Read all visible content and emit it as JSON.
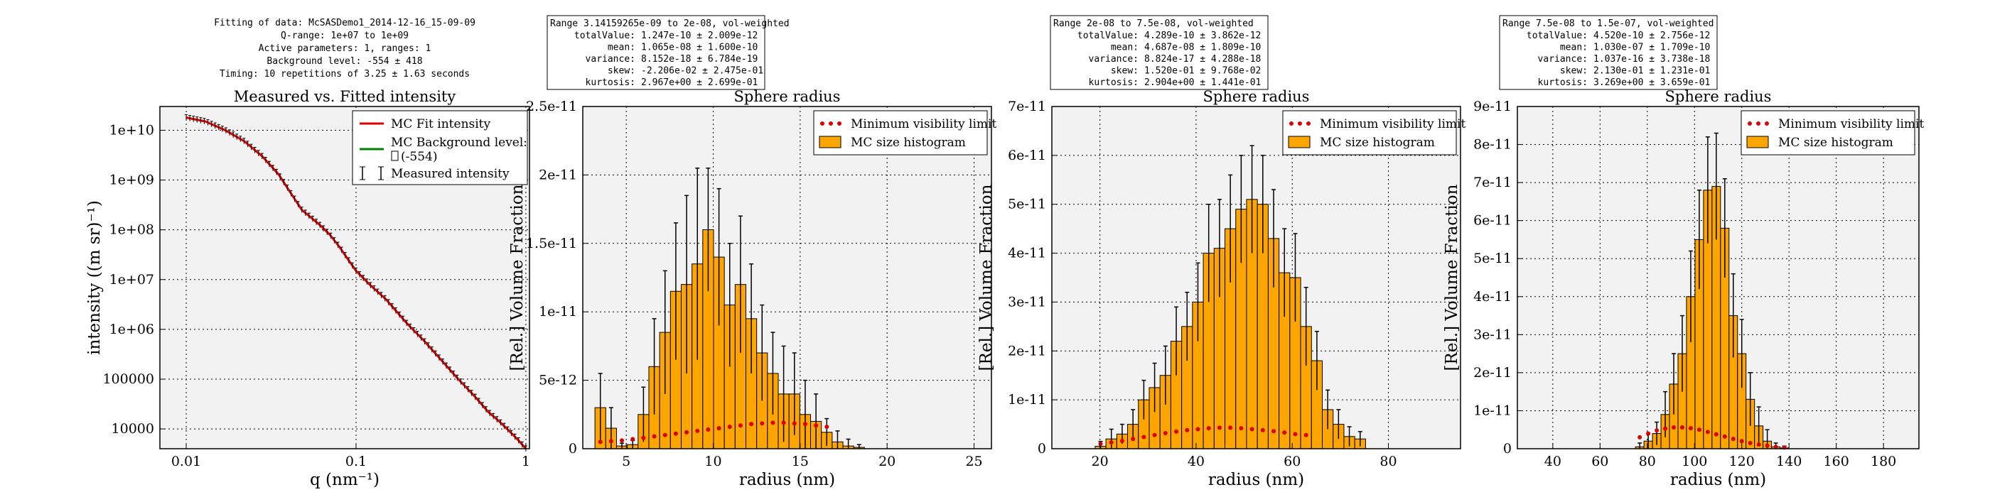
{
  "fit_info": {
    "lines": [
      "Fitting of data: McSASDemo1_2014-12-16_15-09-09",
      "Q-range: 1e+07 to 1e+09",
      "Active parameters: 1, ranges: 1",
      "Background level: -554 ± 418",
      "Timing: 10 repetitions of 3.25 ± 1.63 seconds"
    ]
  },
  "colors": {
    "plot_bg": "#f2f2f2",
    "bar_fill": "#ffa500",
    "fit_line": "#dd0000",
    "min_vis": "#dd0000",
    "background_line": "#008000",
    "error_bar": "#000000"
  },
  "chart_data": [
    {
      "id": "intensity",
      "type": "line",
      "title": "Measured vs. Fitted intensity",
      "xlabel": "q (nm⁻¹)",
      "ylabel": "intensity ((m sr)⁻¹)",
      "xscale": "log",
      "yscale": "log",
      "xlim": [
        0.007,
        1.05
      ],
      "ylim": [
        4000,
        30000000000
      ],
      "xticks": [
        0.01,
        0.1,
        1
      ],
      "xtick_labels": [
        "0.01",
        "0.1",
        "1"
      ],
      "yticks": [
        10000,
        100000,
        1000000,
        10000000,
        100000000,
        1000000000,
        10000000000
      ],
      "ytick_labels": [
        "10000",
        "100000",
        "1e+06",
        "1e+07",
        "1e+08",
        "1e+09",
        "1e+10"
      ],
      "grid": true,
      "legend_position": "top-right",
      "legend": [
        "MC Fit intensity",
        "MC Background level:",
        "(-554)",
        "Measured intensity"
      ],
      "series": [
        {
          "name": "MC Fit intensity",
          "x": [
            0.01,
            0.013,
            0.017,
            0.022,
            0.028,
            0.035,
            0.042,
            0.048,
            0.055,
            0.062,
            0.07,
            0.08,
            0.09,
            0.1,
            0.12,
            0.15,
            0.2,
            0.25,
            0.3,
            0.4,
            0.5,
            0.6,
            0.7,
            0.8,
            0.9,
            1.0
          ],
          "y": [
            18000000000,
            15000000000,
            10000000000,
            6000000000,
            3000000000,
            1300000000,
            500000000,
            250000000,
            170000000,
            120000000,
            80000000,
            45000000,
            25000000,
            15000000,
            8000000,
            4000000,
            1300000,
            600000,
            300000,
            100000,
            45000,
            22000,
            14000,
            9000,
            6000,
            4000
          ]
        }
      ]
    },
    {
      "id": "hist1",
      "type": "bar",
      "title": "Sphere radius",
      "xlabel": "radius (nm)",
      "ylabel": "[Rel.] Volume Fraction",
      "xlim": [
        2.5,
        26
      ],
      "ylim": [
        0,
        2.5e-11
      ],
      "xticks": [
        5,
        10,
        15,
        20,
        25
      ],
      "xtick_labels": [
        "5",
        "10",
        "15",
        "20",
        "25"
      ],
      "yticks": [
        0,
        5e-12,
        1e-11,
        1.5e-11,
        2e-11,
        2.5e-11
      ],
      "ytick_labels": [
        "0",
        "5e-12",
        "1e-11",
        "1.5e-11",
        "2e-11",
        "2.5e-11"
      ],
      "bin_start": 3.2,
      "bin_width": 0.62,
      "values": [
        3e-12,
        1.5e-12,
        2e-13,
        3e-13,
        2.5e-12,
        6e-12,
        8.5e-12,
        1.15e-11,
        1.2e-11,
        1.35e-11,
        1.6e-11,
        1.4e-11,
        1.05e-11,
        1.2e-11,
        9.5e-12,
        7e-12,
        5.5e-12,
        4e-12,
        4e-12,
        2.5e-12,
        2e-12,
        1.2e-12,
        5e-13,
        2e-13,
        1e-13
      ],
      "errors": [
        2.5e-12,
        1.5e-12,
        2e-13,
        3e-13,
        2e-12,
        3.5e-12,
        4.5e-12,
        5e-12,
        6.5e-12,
        7e-12,
        4.5e-12,
        5e-12,
        4.5e-12,
        5e-12,
        4e-12,
        3.5e-12,
        3e-12,
        3.5e-12,
        3e-12,
        2.5e-12,
        2e-12,
        1e-12,
        8e-13,
        5e-13,
        2e-13
      ],
      "min_vis": [
        5e-13,
        5.5e-13,
        6e-13,
        7e-13,
        8e-13,
        9e-13,
        1e-12,
        1.1e-12,
        1.2e-12,
        1.3e-12,
        1.4e-12,
        1.5e-12,
        1.6e-12,
        1.7e-12,
        1.8e-12,
        1.85e-12,
        1.9e-12,
        1.9e-12,
        1.85e-12,
        1.8e-12,
        1.7e-12,
        1.6e-12
      ],
      "legend": [
        "Minimum visibility limit",
        "MC size histogram"
      ],
      "legend_position": "top-right",
      "grid": true,
      "stats": {
        "range": "Range 3.14159265e-09 to 2e-08, vol-weighted",
        "rows": [
          [
            "totalValue:",
            "1.247e-10 ± 2.009e-12"
          ],
          [
            "mean:",
            "1.065e-08 ± 1.600e-10"
          ],
          [
            "variance:",
            "8.152e-18 ± 6.784e-19"
          ],
          [
            "skew:",
            "-2.206e-02 ± 2.475e-01"
          ],
          [
            "kurtosis:",
            "2.967e+00 ± 2.699e-01"
          ]
        ]
      }
    },
    {
      "id": "hist2",
      "type": "bar",
      "title": "Sphere radius",
      "xlabel": "radius (nm)",
      "ylabel": "[Rel.] Volume Fraction",
      "xlim": [
        10,
        95
      ],
      "ylim": [
        0,
        7e-11
      ],
      "xticks": [
        20,
        40,
        60,
        80
      ],
      "xtick_labels": [
        "20",
        "40",
        "60",
        "80"
      ],
      "yticks": [
        0,
        1e-11,
        2e-11,
        3e-11,
        4e-11,
        5e-11,
        6e-11,
        7e-11
      ],
      "ytick_labels": [
        "0",
        "1e-11",
        "2e-11",
        "3e-11",
        "4e-11",
        "5e-11",
        "6e-11",
        "7e-11"
      ],
      "bin_start": 19,
      "bin_width": 2.25,
      "values": [
        5e-13,
        2e-12,
        3e-12,
        5e-12,
        1e-11,
        1.25e-11,
        1.5e-11,
        2.2e-11,
        2.5e-11,
        3e-11,
        4e-11,
        4.1e-11,
        4.5e-11,
        4.9e-11,
        5.1e-11,
        5e-11,
        4.3e-11,
        3.6e-11,
        3.5e-11,
        2.5e-11,
        1.8e-11,
        8e-12,
        5e-12,
        2.5e-12,
        2e-12
      ],
      "errors": [
        1e-12,
        2e-12,
        2e-12,
        3e-12,
        4e-12,
        5e-12,
        6e-12,
        7e-12,
        7e-12,
        8e-12,
        1e-11,
        1e-11,
        1.1e-11,
        1.1e-11,
        1.1e-11,
        1e-11,
        1e-11,
        9e-12,
        9e-12,
        8e-12,
        6e-12,
        4e-12,
        3e-12,
        2e-12,
        1.5e-12
      ],
      "min_vis": [
        1e-12,
        1.3e-12,
        1.6e-12,
        2e-12,
        2.4e-12,
        2.8e-12,
        3.2e-12,
        3.5e-12,
        3.8e-12,
        4e-12,
        4.2e-12,
        4.3e-12,
        4.3e-12,
        4.2e-12,
        4e-12,
        3.8e-12,
        3.6e-12,
        3.3e-12,
        3e-12,
        2.8e-12
      ],
      "legend": [
        "Minimum visibility limit",
        "MC size histogram"
      ],
      "legend_position": "top-right",
      "grid": true,
      "stats": {
        "range": "Range 2e-08 to 7.5e-08, vol-weighted",
        "rows": [
          [
            "totalValue:",
            "4.289e-10 ± 3.862e-12"
          ],
          [
            "mean:",
            "4.687e-08 ± 1.809e-10"
          ],
          [
            "variance:",
            "8.824e-17 ± 4.288e-18"
          ],
          [
            "skew:",
            "1.520e-01 ± 9.768e-02"
          ],
          [
            "kurtosis:",
            "2.904e+00 ± 1.441e-01"
          ]
        ]
      }
    },
    {
      "id": "hist3",
      "type": "bar",
      "title": "Sphere radius",
      "xlabel": "radius (nm)",
      "ylabel": "[Rel.] Volume Fraction",
      "xlim": [
        25,
        195
      ],
      "ylim": [
        0,
        9e-11
      ],
      "xticks": [
        40,
        60,
        80,
        100,
        120,
        140,
        160,
        180
      ],
      "xtick_labels": [
        "40",
        "60",
        "80",
        "100",
        "120",
        "140",
        "160",
        "180"
      ],
      "yticks": [
        0,
        1e-11,
        2e-11,
        3e-11,
        4e-11,
        5e-11,
        6e-11,
        7e-11,
        8e-11,
        9e-11
      ],
      "ytick_labels": [
        "0",
        "1e-11",
        "2e-11",
        "3e-11",
        "4e-11",
        "5e-11",
        "6e-11",
        "7e-11",
        "8e-11",
        "9e-11"
      ],
      "bin_start": 75,
      "bin_width": 3.6,
      "values": [
        5e-13,
        2e-12,
        4e-12,
        9e-12,
        1.7e-11,
        2.5e-11,
        4e-11,
        5.5e-11,
        6.8e-11,
        6.9e-11,
        5.8e-11,
        3.5e-11,
        2.5e-11,
        1.3e-11,
        6e-12,
        2e-12,
        5e-13,
        2e-13
      ],
      "errors": [
        1e-12,
        2e-12,
        3e-12,
        6e-12,
        8e-12,
        1e-11,
        1.2e-11,
        1.3e-11,
        1.4e-11,
        1.4e-11,
        1.3e-11,
        1.1e-11,
        9e-12,
        7e-12,
        5e-12,
        3e-12,
        1e-12,
        5e-13
      ],
      "min_vis": [
        3e-12,
        4e-12,
        4.8e-12,
        5.3e-12,
        5.6e-12,
        5.6e-12,
        5.4e-12,
        5e-12,
        4.4e-12,
        3.8e-12,
        3.2e-12,
        2.6e-12,
        2e-12,
        1.5e-12,
        1.1e-12,
        8e-13,
        5e-13,
        3e-13
      ],
      "legend": [
        "Minimum visibility limit",
        "MC size histogram"
      ],
      "legend_position": "top-right",
      "grid": true,
      "stats": {
        "range": "Range 7.5e-08 to 1.5e-07, vol-weighted",
        "rows": [
          [
            "totalValue:",
            "4.520e-10 ± 2.756e-12"
          ],
          [
            "mean:",
            "1.030e-07 ± 1.709e-10"
          ],
          [
            "variance:",
            "1.037e-16 ± 3.738e-18"
          ],
          [
            "skew:",
            "2.130e-01 ± 1.231e-01"
          ],
          [
            "kurtosis:",
            "3.269e+00 ± 3.659e-01"
          ]
        ]
      }
    }
  ]
}
